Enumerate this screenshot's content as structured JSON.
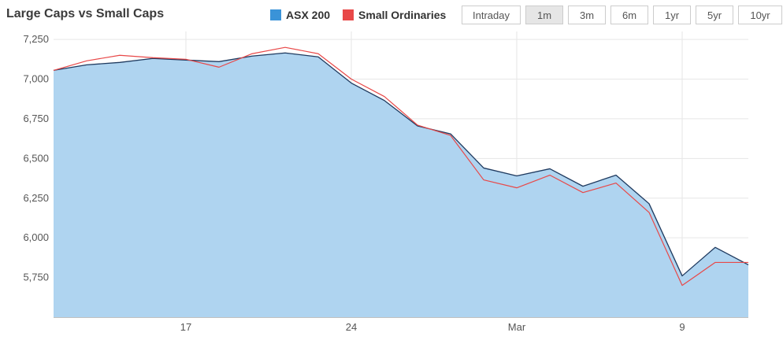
{
  "header": {
    "title": "Large Caps vs Small Caps"
  },
  "legend": [
    {
      "label": "ASX 200",
      "color": "#3a93d8"
    },
    {
      "label": "Small Ordinaries",
      "color": "#e84848"
    }
  ],
  "range_buttons": [
    {
      "label": "Intraday",
      "active": false
    },
    {
      "label": "1m",
      "active": true
    },
    {
      "label": "3m",
      "active": false
    },
    {
      "label": "6m",
      "active": false
    },
    {
      "label": "1yr",
      "active": false
    },
    {
      "label": "5yr",
      "active": false
    },
    {
      "label": "10yr",
      "active": false
    }
  ],
  "chart_data": {
    "type": "area",
    "title": "Large Caps vs Small Caps",
    "xlabel": "",
    "ylabel": "",
    "ylim": [
      5500,
      7300
    ],
    "grid": true,
    "legend_position": "top",
    "colors": {
      "asx200_fill": "#afd4f0",
      "asx200_line": "#1f3a5f",
      "small_ords_line": "#e84848"
    },
    "x_ticks": [
      {
        "label": "17",
        "index": 4
      },
      {
        "label": "24",
        "index": 9
      },
      {
        "label": "Mar",
        "index": 14
      },
      {
        "label": "9",
        "index": 19
      }
    ],
    "y_ticks": [
      5750,
      6000,
      6250,
      6500,
      6750,
      7000,
      7250
    ],
    "y_tick_labels": [
      "5,750",
      "6,000",
      "6,250",
      "6,500",
      "6,750",
      "7,000",
      "7,250"
    ],
    "series": [
      {
        "name": "ASX 200",
        "style": "area",
        "values": [
          7055,
          7090,
          7105,
          7130,
          7120,
          7110,
          7145,
          7165,
          7140,
          6975,
          6865,
          6705,
          6655,
          6440,
          6390,
          6435,
          6325,
          6395,
          6215,
          5760,
          5940,
          5830
        ]
      },
      {
        "name": "Small Ordinaries",
        "style": "line",
        "values": [
          7055,
          7115,
          7150,
          7135,
          7125,
          7075,
          7160,
          7200,
          7160,
          7000,
          6890,
          6710,
          6645,
          6365,
          6315,
          6395,
          6285,
          6345,
          6160,
          5700,
          5845,
          5845
        ]
      }
    ]
  }
}
